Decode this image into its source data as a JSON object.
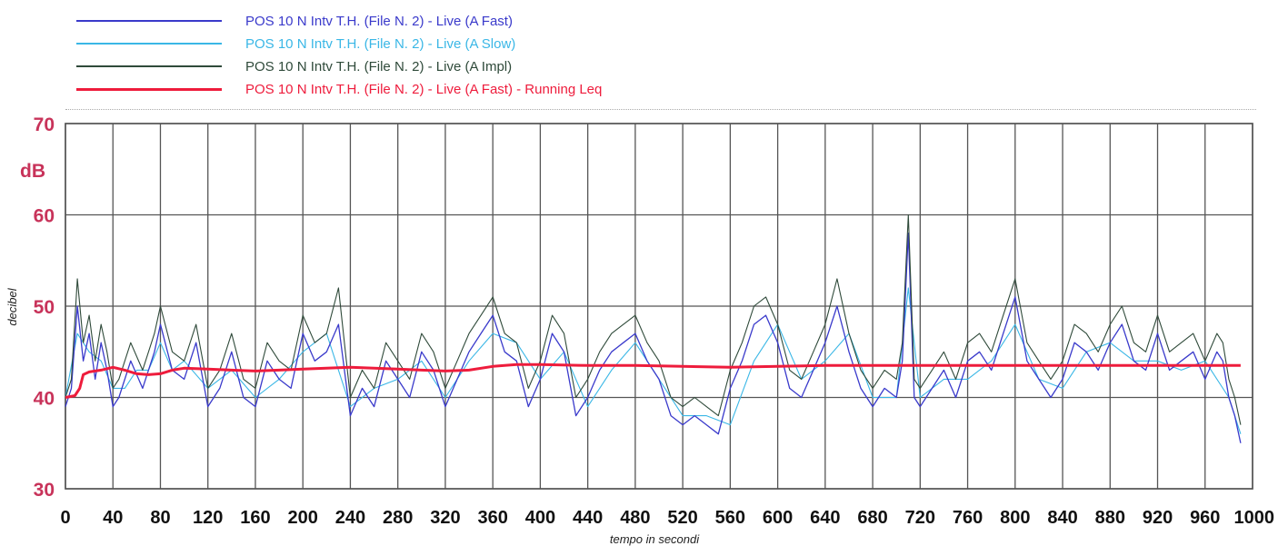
{
  "chart_data": {
    "type": "line",
    "xlabel": "tempo in secondi",
    "ylabel": "decibel",
    "y_unit_label": "dB",
    "xlim": [
      0,
      1000
    ],
    "ylim": [
      30,
      70
    ],
    "x_ticks": [
      0,
      40,
      80,
      120,
      160,
      200,
      240,
      280,
      320,
      360,
      400,
      440,
      480,
      520,
      560,
      600,
      640,
      680,
      720,
      760,
      800,
      840,
      880,
      920,
      960,
      1000
    ],
    "y_ticks": [
      30,
      40,
      50,
      60,
      70
    ],
    "grid": true,
    "legend_position": "top",
    "series": [
      {
        "name": "POS 10 N Intv T.H.  (File N. 2) - Live (A Fast)",
        "color": "#3a3acb",
        "x": [
          0,
          5,
          10,
          15,
          20,
          25,
          30,
          35,
          40,
          45,
          55,
          65,
          75,
          80,
          90,
          100,
          110,
          120,
          130,
          140,
          150,
          160,
          170,
          180,
          190,
          200,
          210,
          220,
          230,
          240,
          250,
          260,
          270,
          280,
          290,
          300,
          310,
          320,
          330,
          340,
          350,
          360,
          370,
          380,
          390,
          400,
          410,
          420,
          430,
          440,
          450,
          460,
          470,
          480,
          490,
          500,
          510,
          520,
          530,
          540,
          550,
          560,
          570,
          580,
          590,
          600,
          610,
          620,
          630,
          640,
          650,
          660,
          670,
          680,
          690,
          700,
          705,
          710,
          715,
          720,
          730,
          740,
          750,
          760,
          770,
          780,
          790,
          800,
          810,
          820,
          830,
          840,
          850,
          860,
          870,
          880,
          890,
          900,
          910,
          920,
          930,
          940,
          950,
          960,
          970,
          975,
          980,
          985,
          990
        ],
        "y": [
          39,
          41,
          50,
          44,
          47,
          42,
          46,
          43,
          39,
          40,
          44,
          41,
          45,
          48,
          43,
          42,
          46,
          39,
          41,
          45,
          40,
          39,
          44,
          42,
          41,
          47,
          44,
          45,
          48,
          38,
          41,
          39,
          44,
          42,
          40,
          45,
          43,
          39,
          42,
          45,
          47,
          49,
          45,
          44,
          39,
          42,
          47,
          45,
          38,
          40,
          43,
          45,
          46,
          47,
          44,
          42,
          38,
          37,
          38,
          37,
          36,
          41,
          44,
          48,
          49,
          46,
          41,
          40,
          43,
          46,
          50,
          45,
          41,
          39,
          41,
          40,
          44,
          58,
          40,
          39,
          41,
          43,
          40,
          44,
          45,
          43,
          47,
          51,
          44,
          42,
          40,
          42,
          46,
          45,
          43,
          46,
          48,
          44,
          43,
          47,
          43,
          44,
          45,
          42,
          45,
          44,
          40,
          38,
          35
        ]
      },
      {
        "name": "POS 10 N Intv T.H.  (File N. 2) - Live (A Slow)",
        "color": "#3ab7e6",
        "x": [
          0,
          10,
          20,
          30,
          40,
          50,
          60,
          70,
          80,
          90,
          100,
          120,
          140,
          160,
          180,
          200,
          220,
          240,
          260,
          280,
          300,
          320,
          340,
          360,
          380,
          400,
          420,
          440,
          460,
          480,
          500,
          520,
          540,
          560,
          580,
          600,
          620,
          640,
          660,
          680,
          700,
          710,
          720,
          740,
          760,
          780,
          800,
          820,
          840,
          860,
          880,
          900,
          920,
          940,
          960,
          980,
          990
        ],
        "y": [
          40,
          47,
          45,
          44,
          41,
          41,
          43,
          43,
          46,
          43,
          44,
          41,
          43,
          40,
          42,
          45,
          47,
          39,
          41,
          42,
          44,
          40,
          44,
          47,
          46,
          42,
          45,
          39,
          43,
          46,
          42,
          38,
          38,
          37,
          44,
          48,
          42,
          44,
          47,
          40,
          40,
          52,
          40,
          42,
          42,
          44,
          48,
          42,
          41,
          45,
          46,
          44,
          44,
          43,
          44,
          40,
          36
        ]
      },
      {
        "name": "POS 10 N Intv T.H.  (File N. 2) - Live (A Impl)",
        "color": "#2f4a3a",
        "x": [
          0,
          5,
          10,
          15,
          20,
          25,
          30,
          35,
          40,
          45,
          55,
          65,
          75,
          80,
          90,
          100,
          110,
          120,
          130,
          140,
          150,
          160,
          170,
          180,
          190,
          200,
          210,
          220,
          230,
          240,
          250,
          260,
          270,
          280,
          290,
          300,
          310,
          320,
          330,
          340,
          350,
          360,
          370,
          380,
          390,
          400,
          410,
          420,
          430,
          440,
          450,
          460,
          470,
          480,
          490,
          500,
          510,
          520,
          530,
          540,
          550,
          560,
          570,
          580,
          590,
          600,
          610,
          620,
          630,
          640,
          650,
          660,
          670,
          680,
          690,
          700,
          705,
          710,
          715,
          720,
          730,
          740,
          750,
          760,
          770,
          780,
          790,
          800,
          810,
          820,
          830,
          840,
          850,
          860,
          870,
          880,
          890,
          900,
          910,
          920,
          930,
          940,
          950,
          960,
          970,
          975,
          980,
          985,
          990
        ],
        "y": [
          40,
          42,
          53,
          46,
          49,
          44,
          48,
          45,
          41,
          42,
          46,
          43,
          47,
          50,
          45,
          44,
          48,
          41,
          43,
          47,
          42,
          41,
          46,
          44,
          43,
          49,
          46,
          47,
          52,
          40,
          43,
          41,
          46,
          44,
          42,
          47,
          45,
          41,
          44,
          47,
          49,
          51,
          47,
          46,
          41,
          44,
          49,
          47,
          40,
          42,
          45,
          47,
          48,
          49,
          46,
          44,
          40,
          39,
          40,
          39,
          38,
          43,
          46,
          50,
          51,
          48,
          43,
          42,
          45,
          48,
          53,
          47,
          43,
          41,
          43,
          42,
          46,
          60,
          42,
          41,
          43,
          45,
          42,
          46,
          47,
          45,
          49,
          53,
          46,
          44,
          42,
          44,
          48,
          47,
          45,
          48,
          50,
          46,
          45,
          49,
          45,
          46,
          47,
          44,
          47,
          46,
          42,
          40,
          37
        ]
      },
      {
        "name": "POS 10 N Intv T.H.  (File N. 2) - Live (A Fast) - Running Leq",
        "color": "#ee1c3c",
        "x": [
          0,
          8,
          12,
          15,
          20,
          30,
          40,
          50,
          60,
          70,
          80,
          90,
          100,
          120,
          140,
          160,
          180,
          200,
          220,
          240,
          260,
          280,
          300,
          320,
          340,
          360,
          380,
          400,
          440,
          480,
          520,
          560,
          600,
          640,
          680,
          720,
          760,
          800,
          840,
          880,
          920,
          960,
          990
        ],
        "y": [
          40,
          40.2,
          41,
          42.5,
          42.8,
          43,
          43.3,
          43,
          42.6,
          42.5,
          42.6,
          43,
          43.2,
          43.1,
          43,
          42.9,
          43,
          43.1,
          43.2,
          43.3,
          43.2,
          43.1,
          43,
          42.9,
          43,
          43.4,
          43.6,
          43.6,
          43.5,
          43.5,
          43.4,
          43.3,
          43.4,
          43.5,
          43.5,
          43.5,
          43.5,
          43.5,
          43.5,
          43.5,
          43.5,
          43.5,
          43.5
        ]
      }
    ]
  }
}
